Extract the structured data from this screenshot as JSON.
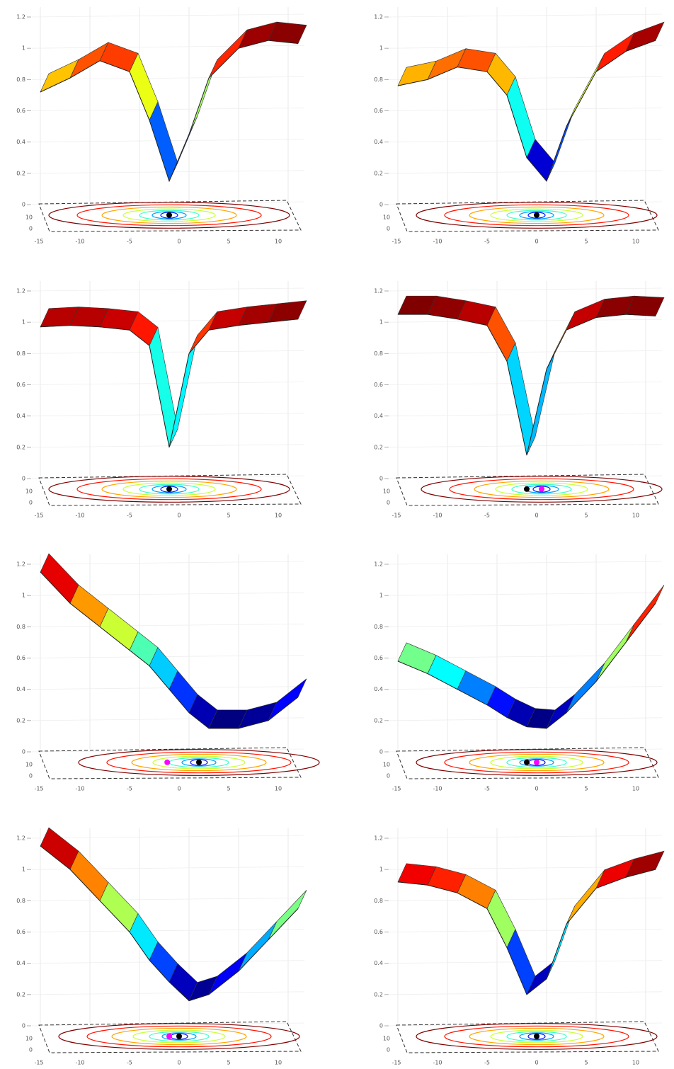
{
  "chart_data": [
    {
      "type": "surface",
      "x": [
        -14,
        -11,
        -8,
        -5,
        -3,
        -1,
        1,
        3,
        6,
        9,
        12
      ],
      "values": [
        0.72,
        0.81,
        0.92,
        0.85,
        0.54,
        0.15,
        0.45,
        0.81,
        1.0,
        1.05,
        1.03
      ],
      "xticks": [
        -15,
        -10,
        -5,
        0,
        5,
        10
      ],
      "yticks": [
        0,
        10
      ],
      "zticks": [
        0,
        0.2,
        0.4,
        0.6,
        0.8,
        1,
        1.2
      ],
      "zlim": [
        0,
        1.2
      ],
      "grid": true,
      "markers": [
        {
          "x": -1,
          "y": 12,
          "color": "#000000"
        }
      ]
    },
    {
      "type": "surface",
      "x": [
        -14,
        -11,
        -8,
        -5,
        -3,
        -1,
        1,
        3,
        6,
        9,
        12
      ],
      "values": [
        0.76,
        0.8,
        0.88,
        0.85,
        0.7,
        0.3,
        0.15,
        0.5,
        0.85,
        0.98,
        1.05
      ],
      "xticks": [
        -15,
        -10,
        -5,
        0,
        5,
        10
      ],
      "yticks": [
        0,
        10
      ],
      "zticks": [
        0,
        0.2,
        0.4,
        0.6,
        0.8,
        1,
        1.2
      ],
      "zlim": [
        0,
        1.2
      ],
      "grid": true,
      "markers": [
        {
          "x": 0,
          "y": 12,
          "color": "#000000"
        }
      ]
    },
    {
      "type": "surface",
      "x": [
        -14,
        -11,
        -8,
        -5,
        -3,
        -1,
        1,
        3,
        6,
        9,
        12
      ],
      "values": [
        0.97,
        0.98,
        0.97,
        0.95,
        0.85,
        0.2,
        0.8,
        0.95,
        0.98,
        1.0,
        1.02
      ],
      "xticks": [
        -15,
        -10,
        -5,
        0,
        5,
        10
      ],
      "yticks": [
        0,
        10
      ],
      "zticks": [
        0,
        0.2,
        0.4,
        0.6,
        0.8,
        1,
        1.2
      ],
      "zlim": [
        0,
        1.2
      ],
      "grid": true,
      "markers": [
        {
          "x": -1,
          "y": 12,
          "color": "#000000"
        }
      ]
    },
    {
      "type": "surface",
      "x": [
        -14,
        -11,
        -8,
        -5,
        -3,
        -1,
        1,
        3,
        6,
        9,
        12
      ],
      "values": [
        1.05,
        1.05,
        1.02,
        0.98,
        0.75,
        0.15,
        0.7,
        0.95,
        1.03,
        1.05,
        1.04
      ],
      "xticks": [
        -15,
        -10,
        -5,
        0,
        5,
        10
      ],
      "yticks": [
        0,
        10
      ],
      "zticks": [
        0,
        0.2,
        0.4,
        0.6,
        0.8,
        1,
        1.2
      ],
      "zlim": [
        0,
        1.2
      ],
      "grid": true,
      "markers": [
        {
          "x": -1,
          "y": 12,
          "color": "#000000"
        },
        {
          "x": 0.5,
          "y": 12,
          "color": "#ff00ff"
        }
      ]
    },
    {
      "type": "surface",
      "x": [
        -14,
        -11,
        -8,
        -5,
        -3,
        -1,
        1,
        3,
        6,
        9,
        12
      ],
      "values": [
        1.15,
        0.95,
        0.8,
        0.65,
        0.55,
        0.4,
        0.25,
        0.15,
        0.15,
        0.2,
        0.35
      ],
      "xticks": [
        -15,
        -10,
        -5,
        0,
        5,
        10
      ],
      "yticks": [
        0,
        10
      ],
      "zticks": [
        0,
        0.2,
        0.4,
        0.6,
        0.8,
        1,
        1.2
      ],
      "zlim": [
        0,
        1.2
      ],
      "grid": true,
      "markers": [
        {
          "x": -1.2,
          "y": 12,
          "color": "#ff00ff"
        },
        {
          "x": 2,
          "y": 12,
          "color": "#000000"
        }
      ]
    },
    {
      "type": "surface",
      "x": [
        -14,
        -11,
        -8,
        -5,
        -3,
        -1,
        1,
        3,
        6,
        9,
        12
      ],
      "values": [
        0.58,
        0.5,
        0.4,
        0.3,
        0.22,
        0.16,
        0.15,
        0.25,
        0.45,
        0.7,
        0.95
      ],
      "xticks": [
        -15,
        -10,
        -5,
        0,
        5,
        10
      ],
      "yticks": [
        0,
        10
      ],
      "zticks": [
        0,
        0.2,
        0.4,
        0.6,
        0.8,
        1,
        1.2
      ],
      "zlim": [
        0,
        1.2
      ],
      "grid": true,
      "markers": [
        {
          "x": -1,
          "y": 12,
          "color": "#000000"
        },
        {
          "x": 0,
          "y": 12,
          "color": "#ff00ff"
        }
      ]
    },
    {
      "type": "surface",
      "x": [
        -14,
        -11,
        -8,
        -5,
        -3,
        -1,
        1,
        3,
        6,
        9,
        12
      ],
      "values": [
        1.15,
        1.0,
        0.8,
        0.6,
        0.42,
        0.28,
        0.16,
        0.2,
        0.35,
        0.55,
        0.75
      ],
      "xticks": [
        -15,
        -10,
        -5,
        0,
        5,
        10
      ],
      "yticks": [
        0,
        10
      ],
      "zticks": [
        0,
        0.2,
        0.4,
        0.6,
        0.8,
        1,
        1.2
      ],
      "zlim": [
        0,
        1.2
      ],
      "grid": true,
      "markers": [
        {
          "x": -1,
          "y": 12,
          "color": "#ff00ff"
        },
        {
          "x": 0,
          "y": 12,
          "color": "#000000"
        }
      ]
    },
    {
      "type": "surface",
      "x": [
        -14,
        -11,
        -8,
        -5,
        -3,
        -1,
        1,
        3,
        6,
        9,
        12
      ],
      "values": [
        0.92,
        0.9,
        0.85,
        0.75,
        0.5,
        0.2,
        0.3,
        0.65,
        0.88,
        0.95,
        1.0
      ],
      "xticks": [
        -15,
        -10,
        -5,
        0,
        5,
        10
      ],
      "yticks": [
        0,
        10
      ],
      "zticks": [
        0,
        0.2,
        0.4,
        0.6,
        0.8,
        1,
        1.2
      ],
      "zlim": [
        0,
        1.2
      ],
      "grid": true,
      "markers": [
        {
          "x": 0,
          "y": 12,
          "color": "#000000"
        }
      ]
    }
  ]
}
